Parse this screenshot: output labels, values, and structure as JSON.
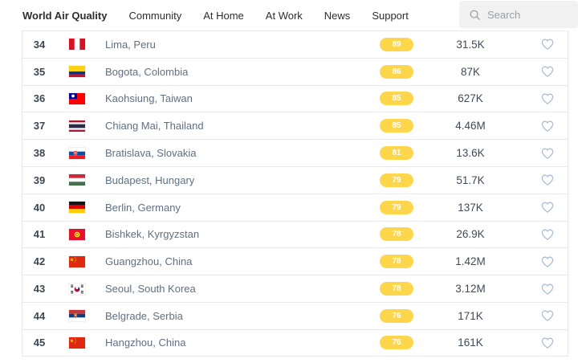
{
  "nav": {
    "brand": "World Air Quality",
    "items": [
      {
        "label": "Community"
      },
      {
        "label": "At Home"
      },
      {
        "label": "At Work"
      },
      {
        "label": "News"
      },
      {
        "label": "Support"
      }
    ]
  },
  "search": {
    "placeholder": "Search"
  },
  "table": {
    "rows": [
      {
        "rank": "34",
        "flag": "peru",
        "city": "Lima, Peru",
        "aqi": "89",
        "followers": "31.5K"
      },
      {
        "rank": "35",
        "flag": "colombia",
        "city": "Bogota, Colombia",
        "aqi": "86",
        "followers": "87K"
      },
      {
        "rank": "36",
        "flag": "taiwan",
        "city": "Kaohsiung, Taiwan",
        "aqi": "85",
        "followers": "627K"
      },
      {
        "rank": "37",
        "flag": "thailand",
        "city": "Chiang Mai, Thailand",
        "aqi": "85",
        "followers": "4.46M"
      },
      {
        "rank": "38",
        "flag": "slovakia",
        "city": "Bratislava, Slovakia",
        "aqi": "81",
        "followers": "13.6K"
      },
      {
        "rank": "39",
        "flag": "hungary",
        "city": "Budapest, Hungary",
        "aqi": "79",
        "followers": "51.7K"
      },
      {
        "rank": "40",
        "flag": "germany",
        "city": "Berlin, Germany",
        "aqi": "79",
        "followers": "137K"
      },
      {
        "rank": "41",
        "flag": "kyrgyzstan",
        "city": "Bishkek, Kyrgyzstan",
        "aqi": "78",
        "followers": "26.9K"
      },
      {
        "rank": "42",
        "flag": "china",
        "city": "Guangzhou, China",
        "aqi": "78",
        "followers": "1.42M"
      },
      {
        "rank": "43",
        "flag": "south-korea",
        "city": "Seoul, South Korea",
        "aqi": "78",
        "followers": "3.12M"
      },
      {
        "rank": "44",
        "flag": "serbia",
        "city": "Belgrade, Serbia",
        "aqi": "76",
        "followers": "171K"
      },
      {
        "rank": "45",
        "flag": "china",
        "city": "Hangzhou, China",
        "aqi": "76",
        "followers": "161K"
      }
    ]
  },
  "colors": {
    "aqi_badge_moderate": "#fdd64b",
    "heart_outline": "#a5bad2",
    "divider": "#e8e8e8"
  }
}
